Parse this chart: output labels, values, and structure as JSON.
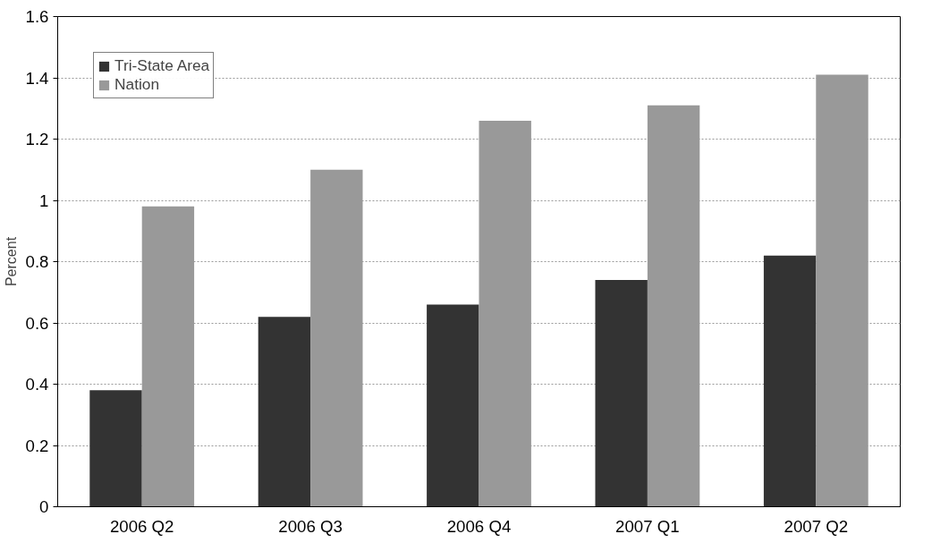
{
  "chart_data": {
    "type": "bar",
    "ylabel": "Percent",
    "categories": [
      "2006 Q2",
      "2006 Q3",
      "2006 Q4",
      "2007 Q1",
      "2007 Q2"
    ],
    "series": [
      {
        "name": "Tri-State Area",
        "color": "#333333",
        "values": [
          0.38,
          0.62,
          0.66,
          0.74,
          0.82
        ]
      },
      {
        "name": "Nation",
        "color": "#999999",
        "values": [
          0.98,
          1.1,
          1.26,
          1.31,
          1.41
        ]
      }
    ],
    "ylim": [
      0,
      1.6
    ],
    "yticks": [
      0,
      0.2,
      0.4,
      0.6,
      0.8,
      1,
      1.2,
      1.4,
      1.6
    ],
    "grid": "y",
    "legend": "top left"
  }
}
